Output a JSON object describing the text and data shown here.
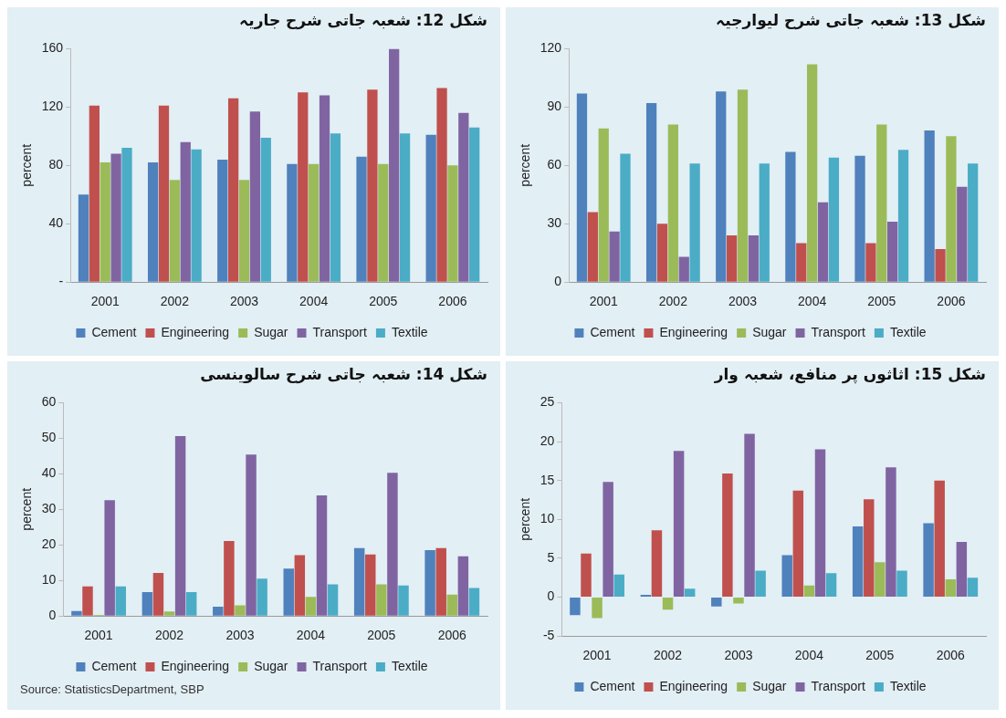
{
  "chart_data": [
    {
      "type": "bar",
      "title": "شکل 12: شعبہ جاتی شرح جاریہ",
      "ylabel": "percent",
      "categories": [
        "2001",
        "2002",
        "2003",
        "2004",
        "2005",
        "2006"
      ],
      "ylim": [
        0,
        160
      ],
      "yticks": [
        {
          "value": 0,
          "label": "-"
        },
        40,
        80,
        120,
        160
      ],
      "grid": false,
      "legend": "bottom",
      "series": [
        {
          "name": "Cement",
          "color": "#4f81bd",
          "values": [
            60,
            82,
            84,
            81,
            86,
            101
          ]
        },
        {
          "name": "Engineering",
          "color": "#c0504d",
          "values": [
            121,
            121,
            126,
            130,
            132,
            133
          ]
        },
        {
          "name": "Sugar",
          "color": "#9bbb59",
          "values": [
            82,
            70,
            70,
            81,
            81,
            80
          ]
        },
        {
          "name": "Transport",
          "color": "#8064a2",
          "values": [
            88,
            96,
            117,
            128,
            160,
            116
          ]
        },
        {
          "name": "Textile",
          "color": "#4bacc6",
          "values": [
            92,
            91,
            99,
            102,
            102,
            106
          ]
        }
      ]
    },
    {
      "type": "bar",
      "title": "شکل 13: شعبہ جاتی شرح لیوارجیہ",
      "ylabel": "percent",
      "categories": [
        "2001",
        "2002",
        "2003",
        "2004",
        "2005",
        "2006"
      ],
      "ylim": [
        0,
        120
      ],
      "yticks": [
        0,
        30,
        60,
        90,
        120
      ],
      "grid": false,
      "legend": "bottom",
      "series": [
        {
          "name": "Cement",
          "color": "#4f81bd",
          "values": [
            97,
            92,
            98,
            67,
            65,
            78
          ]
        },
        {
          "name": "Engineering",
          "color": "#c0504d",
          "values": [
            36,
            30,
            24,
            20,
            20,
            17
          ]
        },
        {
          "name": "Sugar",
          "color": "#9bbb59",
          "values": [
            79,
            81,
            99,
            112,
            81,
            75
          ]
        },
        {
          "name": "Transport",
          "color": "#8064a2",
          "values": [
            26,
            13,
            24,
            41,
            31,
            49
          ]
        },
        {
          "name": "Textile",
          "color": "#4bacc6",
          "values": [
            66,
            61,
            61,
            64,
            68,
            61
          ]
        }
      ]
    },
    {
      "type": "bar",
      "title": "شکل 14: شعبہ جاتی شرح سالوینسی",
      "ylabel": "percent",
      "categories": [
        "2001",
        "2002",
        "2003",
        "2004",
        "2005",
        "2006"
      ],
      "ylim": [
        0,
        60
      ],
      "yticks": [
        0,
        10,
        20,
        30,
        40,
        50,
        60
      ],
      "grid": false,
      "legend": "bottom",
      "annotations": [
        "Source: StatisticsDepartment, SBP"
      ],
      "series": [
        {
          "name": "Cement",
          "color": "#4f81bd",
          "values": [
            1.4,
            6.7,
            2.6,
            13.3,
            19.1,
            18.5
          ]
        },
        {
          "name": "Engineering",
          "color": "#c0504d",
          "values": [
            8.3,
            12.1,
            21.1,
            17.1,
            17.3,
            19.1
          ]
        },
        {
          "name": "Sugar",
          "color": "#9bbb59",
          "values": [
            0.3,
            1.3,
            3,
            5.4,
            8.9,
            6
          ]
        },
        {
          "name": "Transport",
          "color": "#8064a2",
          "values": [
            32.6,
            50.6,
            45.4,
            33.9,
            40.3,
            16.8
          ]
        },
        {
          "name": "Textile",
          "color": "#4bacc6",
          "values": [
            8.3,
            6.7,
            10.5,
            8.9,
            8.6,
            7.9
          ]
        }
      ]
    },
    {
      "type": "bar",
      "title": "شکل 15: اثاثوں پر منافع، شعبہ وار",
      "ylabel": "percent",
      "categories": [
        "2001",
        "2002",
        "2003",
        "2004",
        "2005",
        "2006"
      ],
      "ylim": [
        -5,
        25
      ],
      "yticks": [
        -5,
        0,
        5,
        10,
        15,
        20,
        25
      ],
      "grid": false,
      "legend": "bottom",
      "series": [
        {
          "name": "Cement",
          "color": "#4f81bd",
          "values": [
            -2.3,
            0.3,
            -1.2,
            5.4,
            9.1,
            9.5
          ]
        },
        {
          "name": "Engineering",
          "color": "#c0504d",
          "values": [
            5.6,
            8.6,
            15.9,
            13.7,
            12.6,
            15
          ]
        },
        {
          "name": "Sugar",
          "color": "#9bbb59",
          "values": [
            -2.7,
            -1.6,
            -0.8,
            1.5,
            4.5,
            2.3
          ]
        },
        {
          "name": "Transport",
          "color": "#8064a2",
          "values": [
            14.8,
            18.8,
            21,
            19,
            16.7,
            7.1
          ]
        },
        {
          "name": "Textile",
          "color": "#4bacc6",
          "values": [
            2.9,
            1.1,
            3.4,
            3.1,
            3.4,
            2.5
          ]
        }
      ]
    }
  ]
}
